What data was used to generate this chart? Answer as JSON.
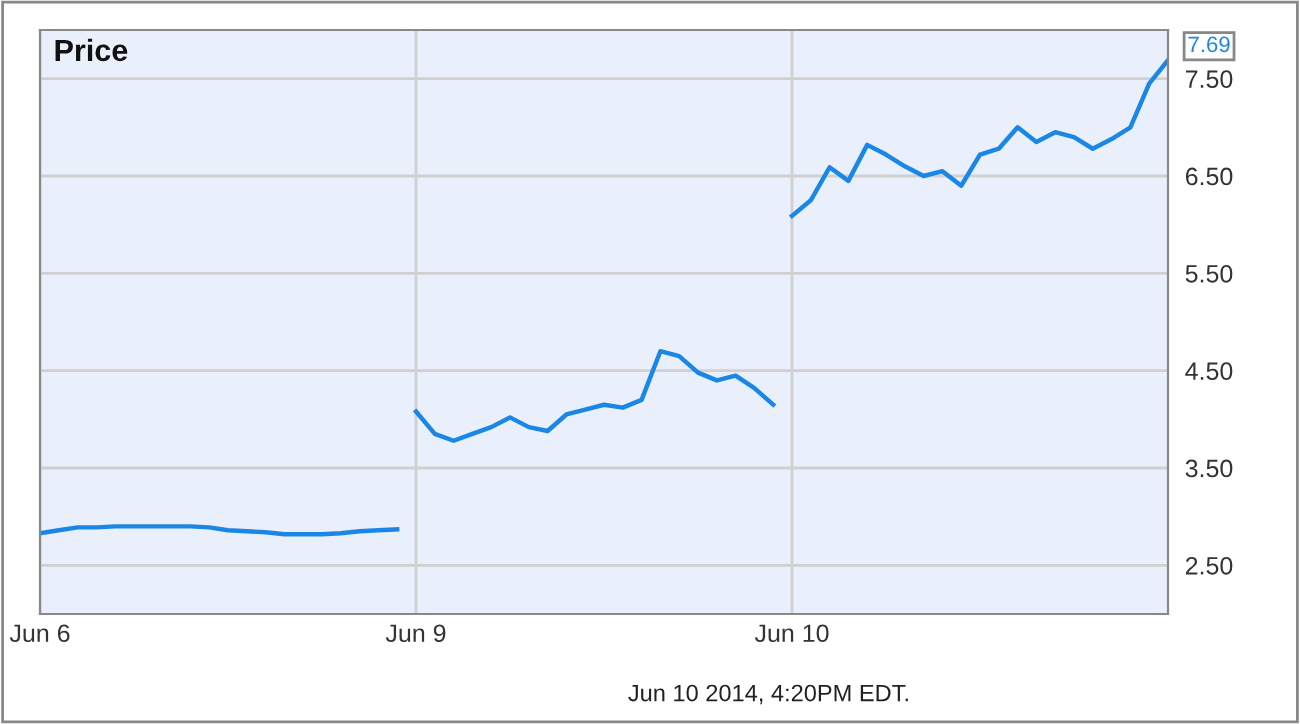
{
  "chart_data": {
    "type": "line",
    "title": "Price",
    "categories": [
      "Jun 6",
      null,
      null,
      null,
      null,
      null,
      null,
      null,
      null,
      null,
      null,
      null,
      null,
      null,
      null,
      null,
      null,
      null,
      null,
      null,
      "Jun 9",
      null,
      null,
      null,
      null,
      null,
      null,
      null,
      null,
      null,
      null,
      null,
      null,
      null,
      null,
      null,
      null,
      null,
      null,
      null,
      "Jun 10",
      null,
      null,
      null,
      null,
      null,
      null,
      null,
      null,
      null,
      null,
      null,
      null,
      null,
      null,
      null,
      null,
      null,
      null,
      null,
      null
    ],
    "series": [
      {
        "color": "#1a87e6",
        "values": [
          2.83,
          2.86,
          2.89,
          2.89,
          2.9,
          2.9,
          2.9,
          2.9,
          2.9,
          2.89,
          2.86,
          2.85,
          2.84,
          2.82,
          2.82,
          2.82,
          2.83,
          2.85,
          2.86,
          2.87,
          null,
          null,
          null,
          null,
          null,
          null,
          null,
          null,
          null,
          null,
          null,
          null,
          null,
          null,
          null,
          null,
          null,
          null,
          null,
          null,
          null,
          null,
          null,
          null,
          null,
          null,
          null,
          null,
          null,
          null,
          null,
          null,
          null,
          null,
          null,
          null,
          null,
          null,
          null,
          null,
          null
        ]
      },
      {
        "color": "#1a87e6",
        "values": [
          null,
          null,
          null,
          null,
          null,
          null,
          null,
          null,
          null,
          null,
          null,
          null,
          null,
          null,
          null,
          null,
          null,
          null,
          null,
          null,
          4.08,
          3.85,
          3.78,
          3.85,
          3.92,
          4.02,
          3.92,
          3.88,
          4.05,
          4.1,
          4.15,
          4.12,
          4.2,
          4.7,
          4.65,
          4.48,
          4.4,
          4.45,
          4.32,
          4.15,
          null,
          null,
          null,
          null,
          null,
          null,
          null,
          null,
          null,
          null,
          null,
          null,
          null,
          null,
          null,
          null,
          null,
          null,
          null,
          null,
          null
        ]
      },
      {
        "color": "#1a87e6",
        "values": [
          null,
          null,
          null,
          null,
          null,
          null,
          null,
          null,
          null,
          null,
          null,
          null,
          null,
          null,
          null,
          null,
          null,
          null,
          null,
          null,
          null,
          null,
          null,
          null,
          null,
          null,
          null,
          null,
          null,
          null,
          null,
          null,
          null,
          null,
          null,
          null,
          null,
          null,
          null,
          null,
          6.09,
          6.25,
          6.59,
          6.45,
          6.82,
          6.72,
          6.6,
          6.5,
          6.55,
          6.4,
          6.72,
          6.78,
          7.0,
          6.85,
          6.95,
          6.9,
          6.78,
          6.88,
          7.0,
          7.45,
          7.69
        ],
        "value_labels": [
          null,
          null,
          null,
          null,
          null,
          null,
          null,
          null,
          null,
          null,
          null,
          null,
          null,
          null,
          null,
          null,
          null,
          null,
          null,
          null,
          null,
          null,
          null,
          null,
          null,
          null,
          null,
          null,
          null,
          null,
          null,
          null,
          null,
          null,
          null,
          null,
          null,
          null,
          null,
          null,
          null,
          null,
          null,
          null,
          null,
          null,
          null,
          null,
          null,
          null,
          null,
          null,
          null,
          null,
          null,
          null,
          null,
          null,
          null,
          null,
          "7.69"
        ]
      }
    ],
    "ylim": [
      2.0,
      8.0
    ],
    "yticks": [
      {
        "value": 2.5,
        "label": "2.50"
      },
      {
        "value": 3.5,
        "label": "3.50"
      },
      {
        "value": 4.5,
        "label": "4.50"
      },
      {
        "value": 5.5,
        "label": "5.50"
      },
      {
        "value": 6.5,
        "label": "6.50"
      },
      {
        "value": 7.5,
        "label": "7.50"
      }
    ],
    "grid": true,
    "legend": false,
    "annotations": [
      "Jun 10 2014, 4:20PM EDT."
    ]
  }
}
